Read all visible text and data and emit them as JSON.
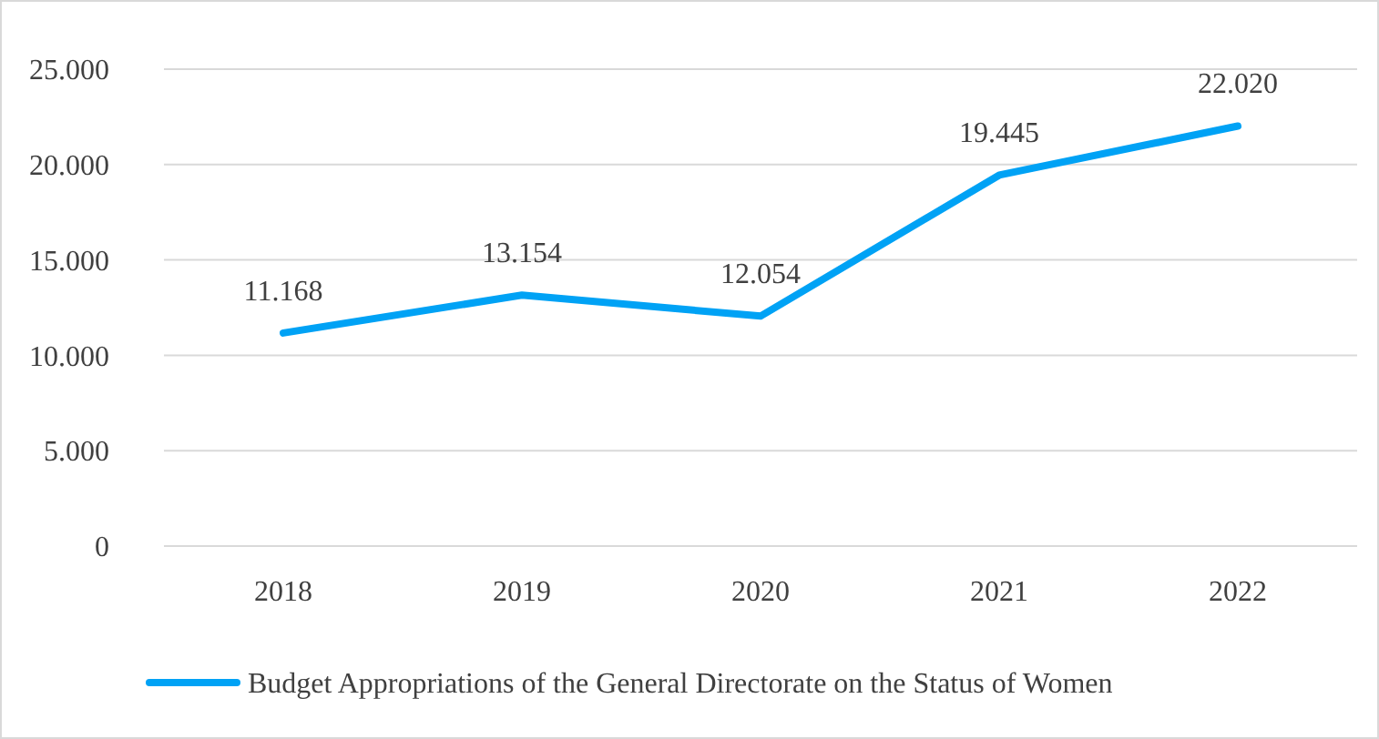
{
  "chart_data": {
    "type": "line",
    "categories": [
      "2018",
      "2019",
      "2020",
      "2021",
      "2022"
    ],
    "series": [
      {
        "name": "Budget Appropriations of the General Directorate on the Status of Women",
        "color": "#00a2f5",
        "values": [
          11168,
          13154,
          12054,
          19445,
          22020
        ],
        "value_labels": [
          "11.168",
          "13.154",
          "12.054",
          "19.445",
          "22.020"
        ]
      }
    ],
    "ylim": [
      0,
      25000
    ],
    "yticks": [
      {
        "value": 0,
        "label": "0"
      },
      {
        "value": 5000,
        "label": "5.000"
      },
      {
        "value": 10000,
        "label": "10.000"
      },
      {
        "value": 15000,
        "label": "15.000"
      },
      {
        "value": 20000,
        "label": "20.000"
      },
      {
        "value": 25000,
        "label": "25.000"
      }
    ],
    "grid": "y",
    "legend": "bottom",
    "marker": "none",
    "line_style": "solid"
  }
}
